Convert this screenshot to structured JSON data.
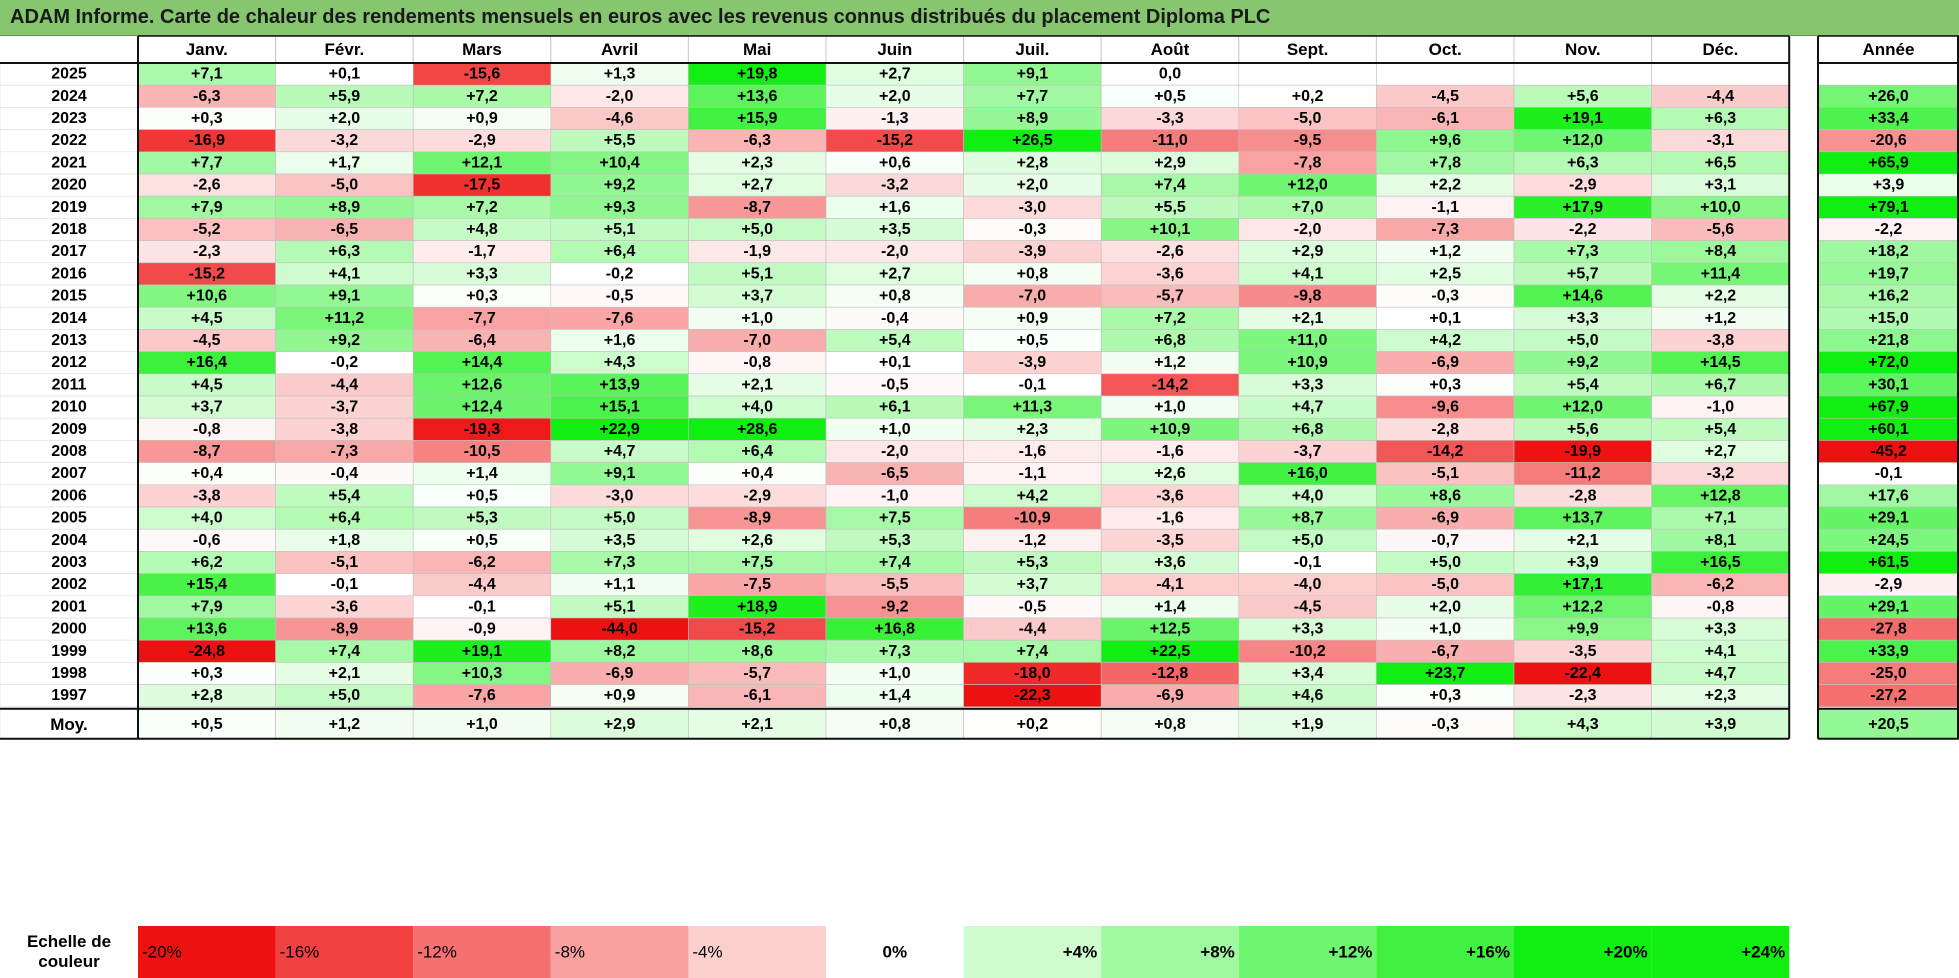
{
  "title": "ADAM Informe. Carte de chaleur des rendements mensuels en euros avec les revenus connus distribués du placement Diploma PLC",
  "chart_data": {
    "type": "heatmap",
    "title": "ADAM Informe. Carte de chaleur des rendements mensuels en euros avec les revenus connus distribués du placement Diploma PLC",
    "months": [
      "Janv.",
      "Févr.",
      "Mars",
      "Avril",
      "Mai",
      "Juin",
      "Juil.",
      "Août",
      "Sept.",
      "Oct.",
      "Nov.",
      "Déc."
    ],
    "year_header": "Année",
    "rows": [
      {
        "year": "2025",
        "values": [
          7.1,
          0.1,
          -15.6,
          1.3,
          19.8,
          2.7,
          9.1,
          0.0,
          null,
          null,
          null,
          null
        ],
        "annual": null
      },
      {
        "year": "2024",
        "values": [
          -6.3,
          5.9,
          7.2,
          -2.0,
          13.6,
          2.0,
          7.7,
          0.5,
          0.2,
          -4.5,
          5.6,
          -4.4
        ],
        "annual": 26.0
      },
      {
        "year": "2023",
        "values": [
          0.3,
          2.0,
          0.9,
          -4.6,
          15.9,
          -1.3,
          8.9,
          -3.3,
          -5.0,
          -6.1,
          19.1,
          6.3
        ],
        "annual": 33.4
      },
      {
        "year": "2022",
        "values": [
          -16.9,
          -3.2,
          -2.9,
          5.5,
          -6.3,
          -15.2,
          26.5,
          -11.0,
          -9.5,
          9.6,
          12.0,
          -3.1
        ],
        "annual": -20.6
      },
      {
        "year": "2021",
        "values": [
          7.7,
          1.7,
          12.1,
          10.4,
          2.3,
          0.6,
          2.8,
          2.9,
          -7.8,
          7.8,
          6.3,
          6.5
        ],
        "annual": 65.9
      },
      {
        "year": "2020",
        "values": [
          -2.6,
          -5.0,
          -17.5,
          9.2,
          2.7,
          -3.2,
          2.0,
          7.4,
          12.0,
          2.2,
          -2.9,
          3.1
        ],
        "annual": 3.9
      },
      {
        "year": "2019",
        "values": [
          7.9,
          8.9,
          7.2,
          9.3,
          -8.7,
          1.6,
          -3.0,
          5.5,
          7.0,
          -1.1,
          17.9,
          10.0
        ],
        "annual": 79.1
      },
      {
        "year": "2018",
        "values": [
          -5.2,
          -6.5,
          4.8,
          5.1,
          5.0,
          3.5,
          -0.3,
          10.1,
          -2.0,
          -7.3,
          -2.2,
          -5.6
        ],
        "annual": -2.2
      },
      {
        "year": "2017",
        "values": [
          -2.3,
          6.3,
          -1.7,
          6.4,
          -1.9,
          -2.0,
          -3.9,
          -2.6,
          2.9,
          1.2,
          7.3,
          8.4
        ],
        "annual": 18.2
      },
      {
        "year": "2016",
        "values": [
          -15.2,
          4.1,
          3.3,
          -0.2,
          5.1,
          2.7,
          0.8,
          -3.6,
          4.1,
          2.5,
          5.7,
          11.4
        ],
        "annual": 19.7
      },
      {
        "year": "2015",
        "values": [
          10.6,
          9.1,
          0.3,
          -0.5,
          3.7,
          0.8,
          -7.0,
          -5.7,
          -9.8,
          -0.3,
          14.6,
          2.2
        ],
        "annual": 16.2
      },
      {
        "year": "2014",
        "values": [
          4.5,
          11.2,
          -7.7,
          -7.6,
          1.0,
          -0.4,
          0.9,
          7.2,
          2.1,
          0.1,
          3.3,
          1.2
        ],
        "annual": 15.0
      },
      {
        "year": "2013",
        "values": [
          -4.5,
          9.2,
          -6.4,
          1.6,
          -7.0,
          5.4,
          0.5,
          6.8,
          11.0,
          4.2,
          5.0,
          -3.8
        ],
        "annual": 21.8
      },
      {
        "year": "2012",
        "values": [
          16.4,
          -0.2,
          14.4,
          4.3,
          -0.8,
          0.1,
          -3.9,
          1.2,
          10.9,
          -6.9,
          9.2,
          14.5
        ],
        "annual": 72.0
      },
      {
        "year": "2011",
        "values": [
          4.5,
          -4.4,
          12.6,
          13.9,
          2.1,
          -0.5,
          -0.1,
          -14.2,
          3.3,
          0.3,
          5.4,
          6.7
        ],
        "annual": 30.1
      },
      {
        "year": "2010",
        "values": [
          3.7,
          -3.7,
          12.4,
          15.1,
          4.0,
          6.1,
          11.3,
          1.0,
          4.7,
          -9.6,
          12.0,
          -1.0
        ],
        "annual": 67.9
      },
      {
        "year": "2009",
        "values": [
          -0.8,
          -3.8,
          -19.3,
          22.9,
          28.6,
          1.0,
          2.3,
          10.9,
          6.8,
          -2.8,
          5.6,
          5.4
        ],
        "annual": 60.1
      },
      {
        "year": "2008",
        "values": [
          -8.7,
          -7.3,
          -10.5,
          4.7,
          6.4,
          -2.0,
          -1.6,
          -1.6,
          -3.7,
          -14.2,
          -19.9,
          2.7
        ],
        "annual": -45.2
      },
      {
        "year": "2007",
        "values": [
          0.4,
          -0.4,
          1.4,
          9.1,
          0.4,
          -6.5,
          -1.1,
          2.6,
          16.0,
          -5.1,
          -11.2,
          -3.2
        ],
        "annual": -0.1
      },
      {
        "year": "2006",
        "values": [
          -3.8,
          5.4,
          0.5,
          -3.0,
          -2.9,
          -1.0,
          4.2,
          -3.6,
          4.0,
          8.6,
          -2.8,
          12.8
        ],
        "annual": 17.6
      },
      {
        "year": "2005",
        "values": [
          4.0,
          6.4,
          5.3,
          5.0,
          -8.9,
          7.5,
          -10.9,
          -1.6,
          8.7,
          -6.9,
          13.7,
          7.1
        ],
        "annual": 29.1
      },
      {
        "year": "2004",
        "values": [
          -0.6,
          1.8,
          0.5,
          3.5,
          2.6,
          5.3,
          -1.2,
          -3.5,
          5.0,
          -0.7,
          2.1,
          8.1
        ],
        "annual": 24.5
      },
      {
        "year": "2003",
        "values": [
          6.2,
          -5.1,
          -6.2,
          7.3,
          7.5,
          7.4,
          5.3,
          3.6,
          -0.1,
          5.0,
          3.9,
          16.5
        ],
        "annual": 61.5
      },
      {
        "year": "2002",
        "values": [
          15.4,
          -0.1,
          -4.4,
          1.1,
          -7.5,
          -5.5,
          3.7,
          -4.1,
          -4.0,
          -5.0,
          17.1,
          -6.2
        ],
        "annual": -2.9
      },
      {
        "year": "2001",
        "values": [
          7.9,
          -3.6,
          -0.1,
          5.1,
          18.9,
          -9.2,
          -0.5,
          1.4,
          -4.5,
          2.0,
          12.2,
          -0.8
        ],
        "annual": 29.1
      },
      {
        "year": "2000",
        "values": [
          13.6,
          -8.9,
          -0.9,
          -44.0,
          -15.2,
          16.8,
          -4.4,
          12.5,
          3.3,
          1.0,
          9.9,
          3.3
        ],
        "annual": -27.8
      },
      {
        "year": "1999",
        "values": [
          -24.8,
          7.4,
          19.1,
          8.2,
          8.6,
          7.3,
          7.4,
          22.5,
          -10.2,
          -6.7,
          -3.5,
          4.1
        ],
        "annual": 33.9
      },
      {
        "year": "1998",
        "values": [
          0.3,
          2.1,
          10.3,
          -6.9,
          -5.7,
          1.0,
          -18.0,
          -12.8,
          3.4,
          23.7,
          -22.4,
          4.7
        ],
        "annual": -25.0
      },
      {
        "year": "1997",
        "values": [
          2.8,
          5.0,
          -7.6,
          0.9,
          -6.1,
          1.4,
          -22.3,
          -6.9,
          4.6,
          0.3,
          -2.3,
          2.3
        ],
        "annual": -27.2
      }
    ],
    "average": {
      "label": "Moy.",
      "values": [
        0.5,
        1.2,
        1.0,
        2.9,
        2.1,
        0.8,
        0.2,
        0.8,
        1.9,
        -0.3,
        4.3,
        3.9
      ],
      "annual": 20.5
    },
    "color_scale": {
      "label": "Echelle de couleur",
      "stops": [
        "-20%",
        "-16%",
        "-12%",
        "-8%",
        "-4%",
        "0%",
        "+4%",
        "+8%",
        "+12%",
        "+16%",
        "+20%",
        "+24%"
      ],
      "negative_color": "#ee1111",
      "neutral_color": "#ffffff",
      "positive_color": "#11ee11"
    }
  }
}
